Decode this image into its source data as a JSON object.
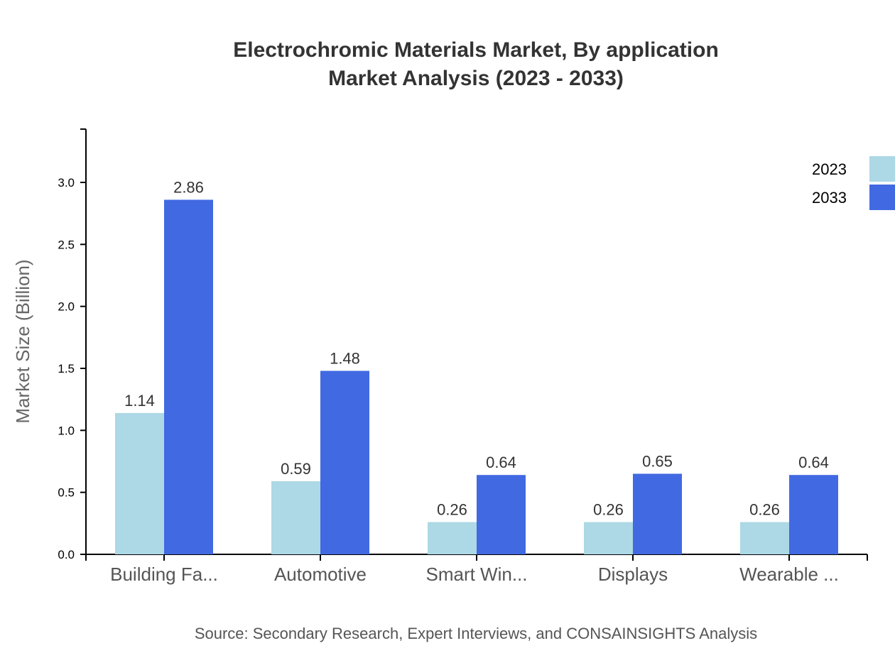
{
  "chart_data": {
    "type": "bar",
    "title": "Electrochromic Materials Market, By application",
    "subtitle": "Market Analysis (2023 - 2033)",
    "xlabel": "",
    "ylabel": "Market Size (Billion)",
    "ylim": [
      0,
      3.43
    ],
    "yticks": [
      "0.0",
      "0.5",
      "1.0",
      "1.5",
      "2.0",
      "2.5",
      "3.0"
    ],
    "categories": [
      "Building Fa...",
      "Automotive",
      "Smart Win...",
      "Displays",
      "Wearable ..."
    ],
    "series": [
      {
        "name": "2023",
        "color": "#add8e6",
        "values": [
          1.14,
          0.59,
          0.26,
          0.26,
          0.26
        ]
      },
      {
        "name": "2033",
        "color": "#4169e1",
        "values": [
          2.86,
          1.48,
          0.64,
          0.65,
          0.64
        ]
      }
    ],
    "grid": false,
    "legend": "top-right",
    "source": "Source: Secondary Research, Expert Interviews, and CONSAINSIGHTS Analysis"
  }
}
